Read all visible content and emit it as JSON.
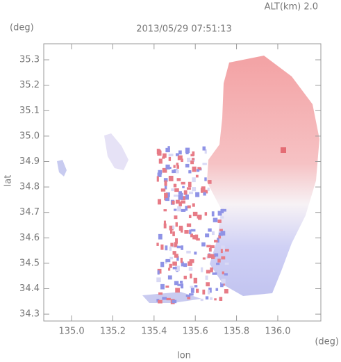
{
  "chart_data": {
    "type": "field",
    "title": "2013/05/29 07:51:13",
    "annotation": "ALT(km) 2.0",
    "x_label": "lon",
    "y_label": "lat",
    "x_unit": "(deg)",
    "y_unit": "(deg)",
    "xlim": [
      134.865,
      136.209
    ],
    "ylim": [
      34.273,
      35.363
    ],
    "xticks": [
      {
        "value": 135,
        "label": "135.0"
      },
      135.2,
      135.4,
      135.6,
      135.8,
      {
        "value": 136,
        "label": "136.0"
      }
    ],
    "yticks": [
      34.3,
      34.4,
      34.5,
      34.6,
      34.7,
      34.8,
      34.9,
      {
        "value": 35,
        "label": "35.0"
      },
      35.1,
      35.2,
      35.3
    ]
  }
}
